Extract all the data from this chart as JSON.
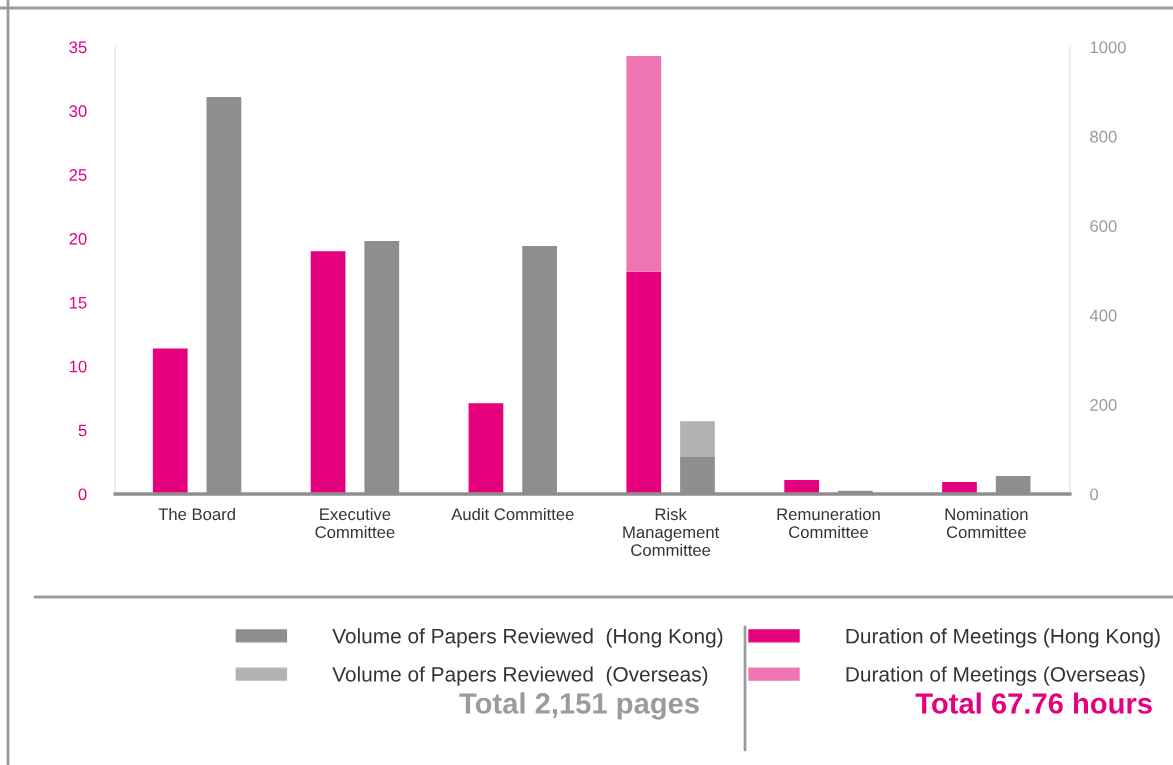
{
  "chart_data": {
    "type": "bar",
    "stacked": true,
    "categories": [
      "The Board",
      "Executive\nCommittee",
      "Audit Committee",
      "Risk\nManagement\nCommittee",
      "Remuneration\nCommittee",
      "Nomination\nCommittee"
    ],
    "series": [
      {
        "name": "Duration of Meetings (Hong Kong)",
        "color": "#e5007e",
        "values": [
          11.4,
          19.0,
          7.1,
          17.4,
          1.1,
          0.94
        ]
      },
      {
        "name": "Duration of Meetings (Overseas)",
        "color": "#ee75b2",
        "values": [
          null,
          null,
          null,
          16.9,
          null,
          null
        ]
      },
      {
        "name": "Volume of Papers Reviewed  (Hong Kong)",
        "color": "#8d8e90",
        "axis": "y2",
        "values": [
          888,
          566,
          555,
          83,
          7,
          40
        ]
      },
      {
        "name": "Volume of Papers Reviewed  (Overseas)",
        "color": "#b1b2b4",
        "axis": "y2",
        "values": [
          null,
          null,
          null,
          80,
          null,
          null
        ]
      }
    ],
    "ylim": [
      0,
      35
    ],
    "yticks": [
      0,
      5,
      10,
      15,
      20,
      25,
      30,
      35
    ],
    "y2lim": [
      0,
      1000
    ],
    "y2ticks": [
      0,
      200,
      400,
      600,
      800,
      1000
    ],
    "grid": false,
    "legend": "bottom",
    "annotations": [
      "Total 2,151 pages",
      "Total 67.76 hours"
    ]
  }
}
